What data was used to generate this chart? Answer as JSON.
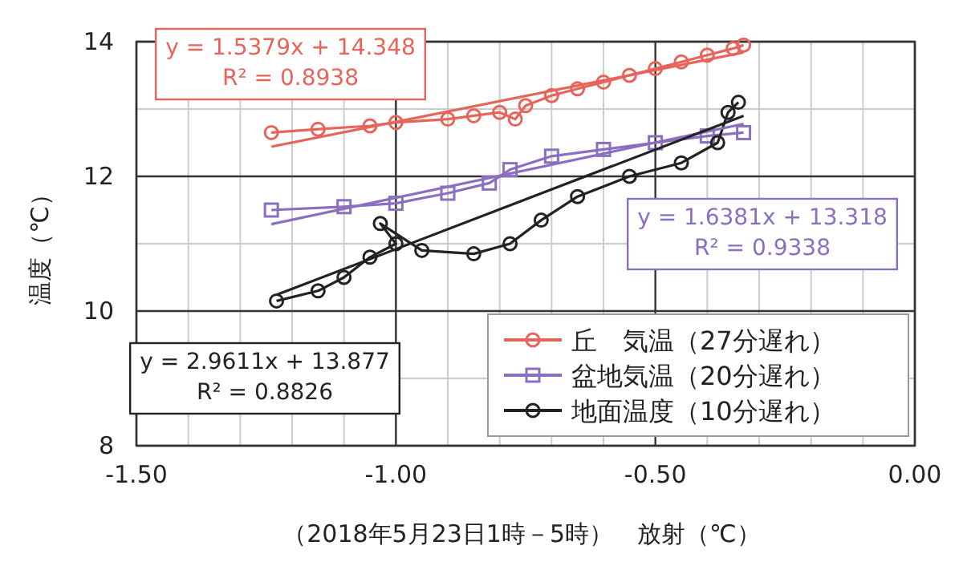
{
  "chart_data": {
    "type": "line",
    "xlabel": "（2018年5月23日1時－5時）　放射（℃）",
    "ylabel": "温度（℃）",
    "xlim": [
      -1.5,
      0
    ],
    "ylim": [
      8,
      14
    ],
    "xticks": [
      {
        "value": -1.5,
        "label": "-1.50"
      },
      {
        "value": -1.0,
        "label": "-1.00"
      },
      {
        "value": -0.5,
        "label": "-0.50"
      },
      {
        "value": 0,
        "label": "0.00"
      }
    ],
    "yticks": [
      8,
      10,
      12,
      14
    ],
    "grid": true,
    "legend": "bottom right",
    "series": [
      {
        "name": "丘　気温（27分遅れ）",
        "color": "#e8645a",
        "marker": "circle",
        "x": [
          -1.24,
          -1.15,
          -1.05,
          -1.0,
          -0.9,
          -0.85,
          -0.8,
          -0.77,
          -0.75,
          -0.7,
          -0.65,
          -0.6,
          -0.55,
          -0.5,
          -0.45,
          -0.4,
          -0.35,
          -0.33
        ],
        "values": [
          12.65,
          12.7,
          12.75,
          12.8,
          12.85,
          12.9,
          12.95,
          12.85,
          13.05,
          13.2,
          13.3,
          13.4,
          13.5,
          13.6,
          13.7,
          13.8,
          13.9,
          13.95
        ]
      },
      {
        "name": "盆地気温（20分遅れ）",
        "color": "#8a6fc0",
        "marker": "square",
        "x": [
          -1.24,
          -1.1,
          -1.0,
          -0.9,
          -0.82,
          -0.78,
          -0.7,
          -0.6,
          -0.5,
          -0.4,
          -0.33
        ],
        "values": [
          11.5,
          11.55,
          11.6,
          11.75,
          11.9,
          12.1,
          12.3,
          12.4,
          12.5,
          12.6,
          12.65
        ]
      },
      {
        "name": "地面温度（10分遅れ）",
        "color": "#222222",
        "marker": "circle",
        "x": [
          -1.23,
          -1.15,
          -1.1,
          -1.05,
          -1.0,
          -1.03,
          -0.95,
          -0.85,
          -0.78,
          -0.72,
          -0.65,
          -0.55,
          -0.45,
          -0.38,
          -0.36,
          -0.34
        ],
        "values": [
          10.15,
          10.3,
          10.5,
          10.8,
          11.0,
          11.3,
          10.9,
          10.85,
          11.0,
          11.35,
          11.7,
          12.0,
          12.2,
          12.5,
          12.95,
          13.1
        ]
      },
      {
        "type": "line",
        "color": "#e8645a",
        "x": [
          -1.24,
          -0.33
        ],
        "values": [
          12.44,
          13.84
        ]
      },
      {
        "type": "line",
        "color": "#8a6fc0",
        "x": [
          -1.24,
          -0.33
        ],
        "values": [
          11.29,
          12.78
        ]
      },
      {
        "type": "line",
        "color": "#222222",
        "x": [
          -1.23,
          -0.33
        ],
        "values": [
          10.24,
          12.9
        ]
      }
    ],
    "annotations": [
      "y = 1.5379x + 14.348\nR² = 0.8938",
      "y = 1.6381x + 13.318\nR² = 0.9338",
      "y = 2.9611x + 13.877\nR² = 0.8826"
    ]
  }
}
